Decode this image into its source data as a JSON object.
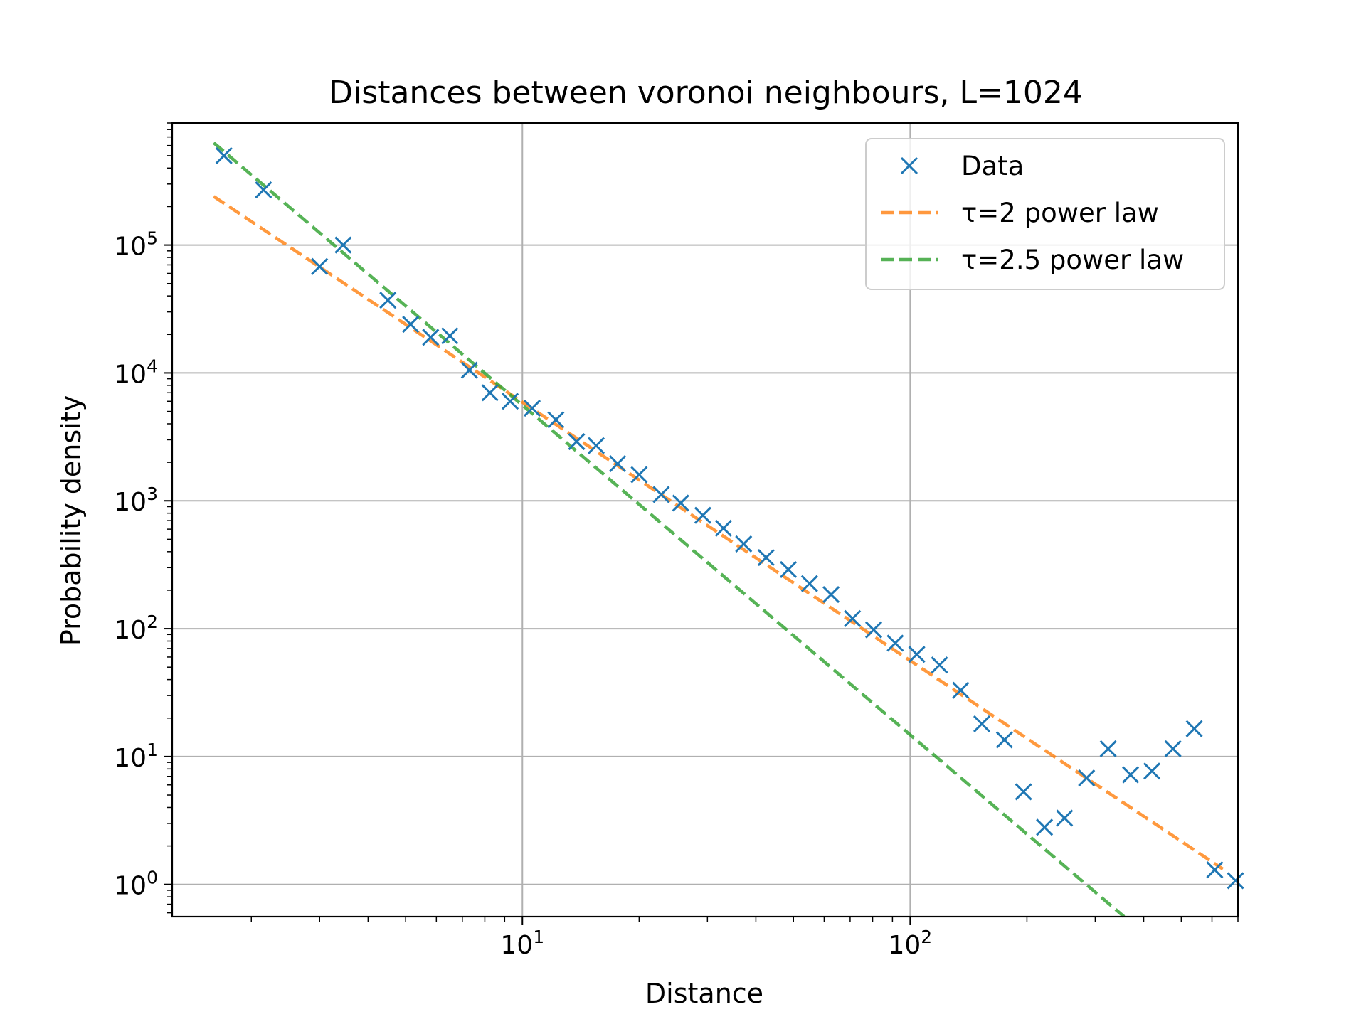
{
  "chart_data": {
    "type": "scatter",
    "title": "Distances between voronoi neighbours, L=1024",
    "xlabel": "Distance",
    "ylabel": "Probability density",
    "xscale": "log",
    "yscale": "log",
    "xlim": [
      1.25,
      700
    ],
    "ylim": [
      0.56,
      900000
    ],
    "grid": true,
    "legend_position": "top-right",
    "x_ticks": [
      {
        "value": 10,
        "base": "10",
        "exp": "1"
      },
      {
        "value": 100,
        "base": "10",
        "exp": "2"
      }
    ],
    "y_ticks": [
      {
        "value": 1,
        "base": "10",
        "exp": "0"
      },
      {
        "value": 10,
        "base": "10",
        "exp": "1"
      },
      {
        "value": 100,
        "base": "10",
        "exp": "2"
      },
      {
        "value": 1000,
        "base": "10",
        "exp": "3"
      },
      {
        "value": 10000,
        "base": "10",
        "exp": "4"
      },
      {
        "value": 100000,
        "base": "10",
        "exp": "5"
      }
    ],
    "series": [
      {
        "name": "Data",
        "kind": "markers",
        "marker": "x",
        "color": "#1f77b4",
        "x": [
          1.7,
          2.15,
          3.0,
          3.45,
          4.5,
          5.15,
          5.8,
          6.5,
          7.3,
          8.25,
          9.3,
          10.6,
          12.2,
          13.8,
          15.5,
          17.6,
          20.0,
          22.8,
          25.6,
          29.2,
          33.0,
          37.2,
          42.5,
          48.5,
          55.0,
          62.5,
          71.0,
          80.5,
          91.5,
          104,
          119,
          135,
          153,
          175,
          196,
          222,
          250,
          285,
          324,
          370,
          420,
          476,
          540,
          610,
          690
        ],
        "y": [
          500000,
          270000,
          68000,
          100000,
          37000,
          24000,
          19000,
          19500,
          10500,
          7000,
          6000,
          5300,
          4300,
          2900,
          2700,
          1950,
          1600,
          1120,
          960,
          770,
          610,
          460,
          360,
          290,
          225,
          185,
          120,
          98,
          77,
          63,
          52,
          33,
          18,
          13.5,
          5.3,
          2.8,
          3.3,
          6.8,
          11.5,
          7.2,
          7.7,
          11.5,
          16.5,
          1.3,
          1.07
        ]
      },
      {
        "name": "τ=2 power law",
        "kind": "dashed-line",
        "color": "#ff7f0e",
        "x": [
          1.6,
          640
        ],
        "y": [
          240000,
          1.32
        ]
      },
      {
        "name": "τ=2.5 power law",
        "kind": "dashed-line",
        "color": "#2ca02c",
        "x": [
          1.6,
          356
        ],
        "y": [
          630000,
          0.56
        ]
      }
    ]
  }
}
